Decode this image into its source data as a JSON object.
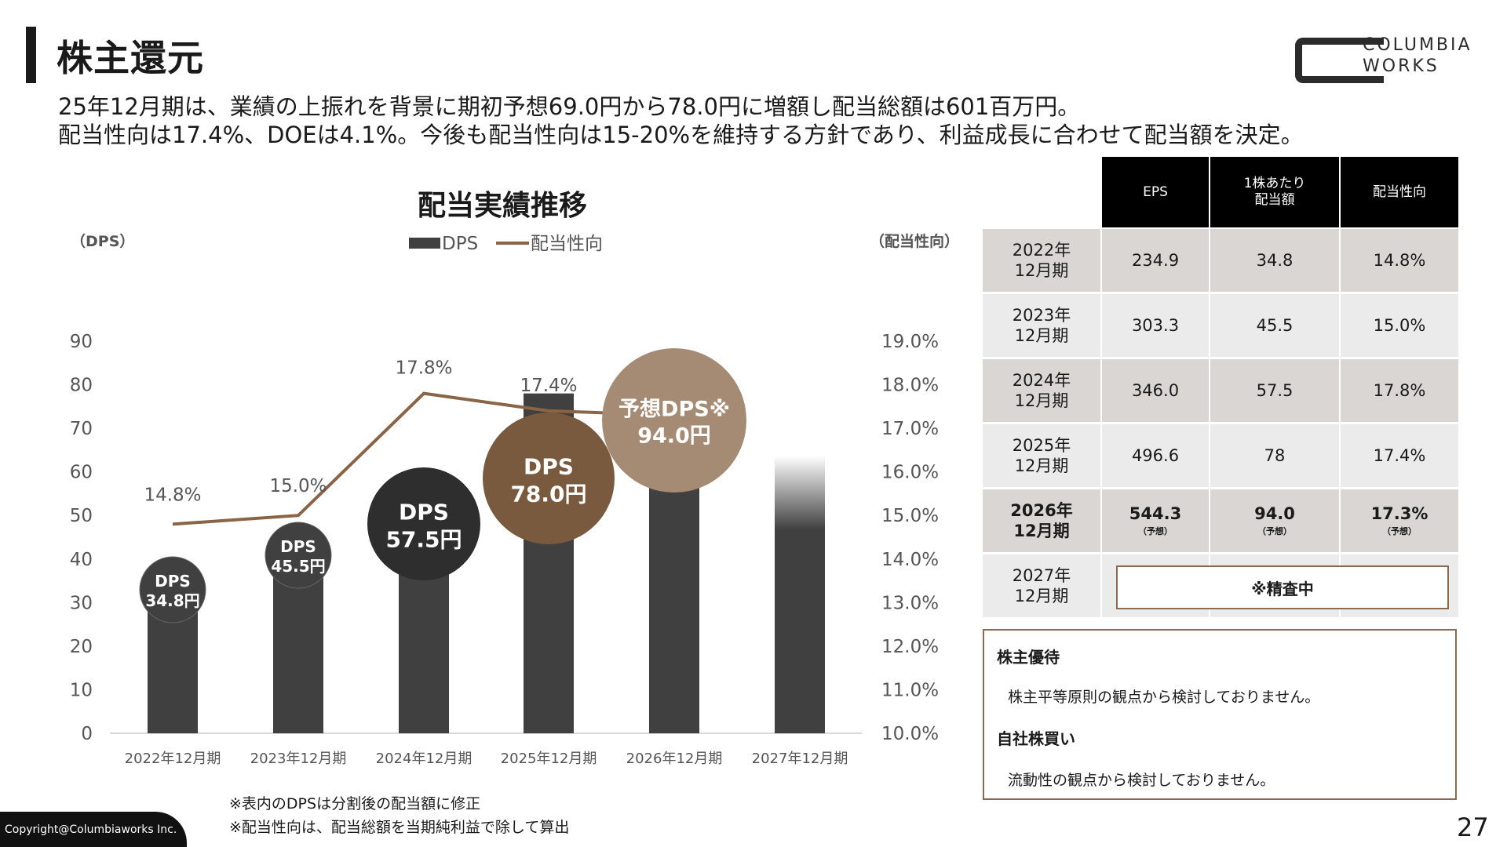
{
  "header": {
    "title": "株主還元",
    "logo_line1": "COLUMBIA",
    "logo_line2": "WORKS",
    "lead_line1": "25年12月期は、業績の上振れを背景に期初予想69.0円から78.0円に増額し配当総額は601百万円。",
    "lead_line2": "配当性向は17.4%、DOEは4.1%。今後も配当性向は15-20%を維持する方針であり、利益成長に合わせて配当額を決定。"
  },
  "chart_data": {
    "type": "bar",
    "title": "配当実績推移",
    "left_axis_label": "（DPS）",
    "right_axis_label": "（配当性向）",
    "categories": [
      "2022年12月期",
      "2023年12月期",
      "2024年12月期",
      "2025年12月期",
      "2026年12月期",
      "2027年12月期"
    ],
    "series": [
      {
        "name": "DPS",
        "type": "bar",
        "values": [
          34.8,
          45.5,
          57.5,
          78.0,
          94.0,
          null
        ]
      },
      {
        "name": "配当性向",
        "type": "line",
        "values": [
          14.8,
          15.0,
          17.8,
          17.4,
          17.3,
          null
        ]
      }
    ],
    "ylim": [
      0,
      90
    ],
    "yticks": [
      0,
      10,
      20,
      30,
      40,
      50,
      60,
      70,
      80,
      90
    ],
    "y2lim": [
      10.0,
      19.0
    ],
    "y2ticks": [
      "10.0%",
      "11.0%",
      "12.0%",
      "13.0%",
      "14.0%",
      "15.0%",
      "16.0%",
      "17.0%",
      "18.0%",
      "19.0%"
    ],
    "line_labels": [
      "14.8%",
      "15.0%",
      "17.8%",
      "17.4%"
    ],
    "bubbles": [
      {
        "line1": "DPS",
        "line2": "34.8円"
      },
      {
        "line1": "DPS",
        "line2": "45.5円"
      },
      {
        "line1": "DPS",
        "line2": "57.5円"
      },
      {
        "line1": "DPS",
        "line2": "78.0円"
      },
      {
        "line1": "予想DPS※",
        "line2": "94.0円"
      }
    ],
    "legend": "top",
    "colors": {
      "bar": "#404040",
      "line": "#8a6446",
      "bubble_dark": "#404040",
      "bubble_mid": "#2e2e2e",
      "bubble_brown": "#7a5a3e",
      "bubble_light": "#a58b74"
    }
  },
  "table": {
    "headers": [
      "EPS",
      "1株あたり\n配当額",
      "配当性向"
    ],
    "rows": [
      {
        "label": "2022年\n12月期",
        "eps": "234.9",
        "dps": "34.8",
        "payout": "14.8%"
      },
      {
        "label": "2023年\n12月期",
        "eps": "303.3",
        "dps": "45.5",
        "payout": "15.0%"
      },
      {
        "label": "2024年\n12月期",
        "eps": "346.0",
        "dps": "57.5",
        "payout": "17.8%"
      },
      {
        "label": "2025年\n12月期",
        "eps": "496.6",
        "dps": "78",
        "payout": "17.4%"
      },
      {
        "label": "2026年\n12月期",
        "eps": "544.3",
        "dps": "94.0",
        "payout": "17.3%",
        "note": "（予想）"
      },
      {
        "label": "2027年\n12月期",
        "pending": "※精査中"
      }
    ]
  },
  "info": {
    "yutai_head": "株主優待",
    "yutai_text": "株主平等原則の観点から検討しておりません。",
    "buyback_head": "自社株買い",
    "buyback_text": "流動性の観点から検討しておりません。"
  },
  "notes": [
    "※表内のDPSは分割後の配当額に修正",
    "※配当性向は、配当総額を当期純利益で除して算出"
  ],
  "footer": {
    "copyright": "Copyright@Columbiaworks Inc.",
    "page": "27"
  }
}
